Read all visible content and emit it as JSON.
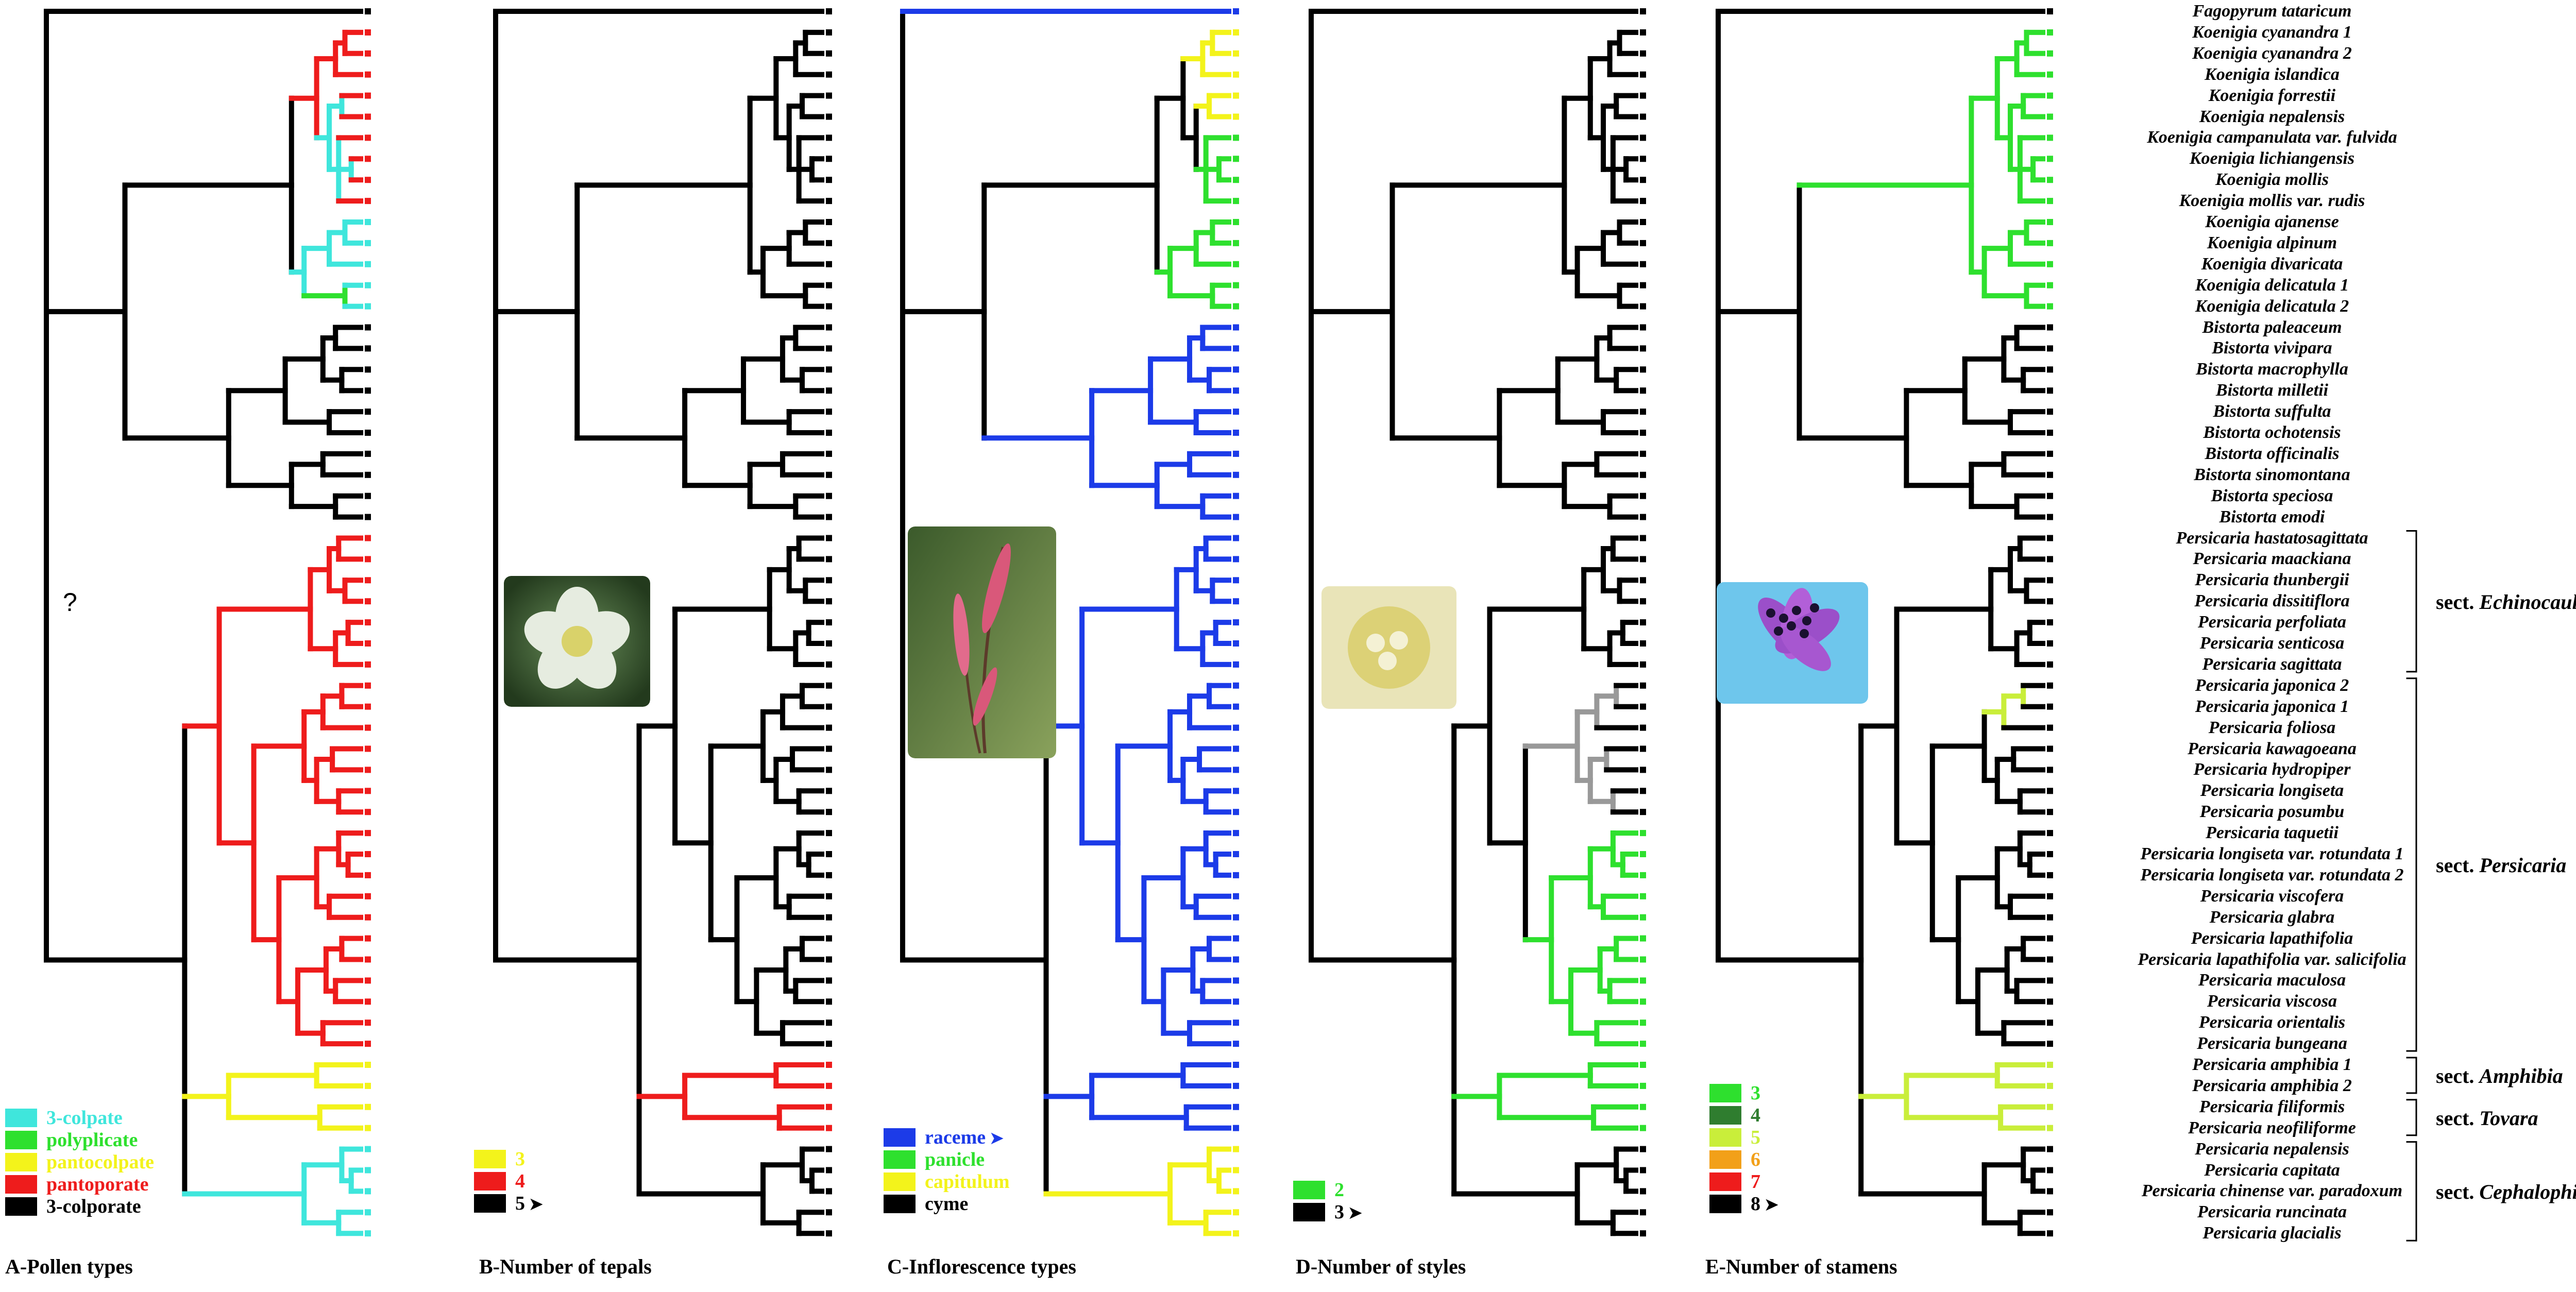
{
  "taxa": [
    "Fagopyrum tataricum",
    "Koenigia cyanandra 1",
    "Koenigia cyanandra 2",
    "Koenigia islandica",
    "Koenigia forrestii",
    "Koenigia nepalensis",
    "Koenigia campanulata var. fulvida",
    "Koenigia lichiangensis",
    "Koenigia mollis",
    "Koenigia mollis var. rudis",
    "Koenigia ajanense",
    "Koenigia alpinum",
    "Koenigia divaricata",
    "Koenigia delicatula 1",
    "Koenigia delicatula 2",
    "Bistorta paleaceum",
    "Bistorta vivipara",
    "Bistorta macrophylla",
    "Bistorta milletii",
    "Bistorta suffulta",
    "Bistorta ochotensis",
    "Bistorta officinalis",
    "Bistorta sinomontana",
    "Bistorta speciosa",
    "Bistorta emodi",
    "Persicaria hastatosagittata",
    "Persicaria maackiana",
    "Persicaria thunbergii",
    "Persicaria dissitiflora",
    "Persicaria perfoliata",
    "Persicaria senticosa",
    "Persicaria sagittata",
    "Persicaria japonica 2",
    "Persicaria japonica 1",
    "Persicaria foliosa",
    "Persicaria kawagoeana",
    "Persicaria hydropiper",
    "Persicaria longiseta",
    "Persicaria posumbu",
    "Persicaria taquetii",
    "Persicaria longiseta var. rotundata 1",
    "Persicaria longiseta var. rotundata 2",
    "Persicaria viscofera",
    "Persicaria glabra",
    "Persicaria lapathifolia",
    "Persicaria lapathifolia var. salicifolia",
    "Persicaria maculosa",
    "Persicaria viscosa",
    "Persicaria orientalis",
    "Persicaria bungeana",
    "Persicaria amphibia 1",
    "Persicaria amphibia 2",
    "Persicaria filiformis",
    "Persicaria neofiliforme",
    "Persicaria nepalensis",
    "Persicaria capitata",
    "Persicaria chinense var. paradoxum",
    "Persicaria runcinata",
    "Persicaria glacialis"
  ],
  "sections": [
    {
      "prefix": "sect. ",
      "name": "Echinocaulon",
      "from": 25,
      "to": 31
    },
    {
      "prefix": "sect. ",
      "name": "Persicaria",
      "from": 32,
      "to": 49
    },
    {
      "prefix": "sect. ",
      "name": "Amphibia",
      "from": 50,
      "to": 51
    },
    {
      "prefix": "sect. ",
      "name": "Tovara",
      "from": 52,
      "to": 53
    },
    {
      "prefix": "sect. ",
      "name": "Cephalophilon",
      "from": 54,
      "to": 58
    }
  ],
  "unknown_mark": "?",
  "panels": [
    {
      "id": "A",
      "title": "A-Pollen types",
      "legend": [
        {
          "label": "3-colpate",
          "color": "#3fe6dc"
        },
        {
          "label": "polyplicate",
          "color": "#2ee02e"
        },
        {
          "label": "pantocolpate",
          "color": "#f3f31b"
        },
        {
          "label": "pantoporate",
          "color": "#ee1c1c"
        },
        {
          "label": "3-colporate",
          "color": "#000000"
        }
      ]
    },
    {
      "id": "B",
      "title": "B-Number of tepals",
      "legend": [
        {
          "label": "3",
          "color": "#f3f31b"
        },
        {
          "label": "4",
          "color": "#ee1c1c"
        },
        {
          "label": "5",
          "color": "#000000",
          "arrow": "➤"
        }
      ]
    },
    {
      "id": "C",
      "title": "C-Inflorescence types",
      "legend": [
        {
          "label": "raceme",
          "color": "#1c3be8",
          "arrow": "➤"
        },
        {
          "label": "panicle",
          "color": "#2ee02e"
        },
        {
          "label": "capitulum",
          "color": "#f3f31b"
        },
        {
          "label": "cyme",
          "color": "#000000"
        }
      ]
    },
    {
      "id": "D",
      "title": "D-Number of styles",
      "legend": [
        {
          "label": "2",
          "color": "#2ee02e"
        },
        {
          "label": "3",
          "color": "#000000",
          "arrow": "➤"
        }
      ]
    },
    {
      "id": "E",
      "title": "E-Number of stamens",
      "legend": [
        {
          "label": "3",
          "color": "#2ee02e"
        },
        {
          "label": "4",
          "color": "#2f7d2f"
        },
        {
          "label": "5",
          "color": "#c9ee3a"
        },
        {
          "label": "6",
          "color": "#f2a019"
        },
        {
          "label": "7",
          "color": "#ee1c1c"
        },
        {
          "label": "8",
          "color": "#000000",
          "arrow": "➤"
        }
      ]
    }
  ]
}
